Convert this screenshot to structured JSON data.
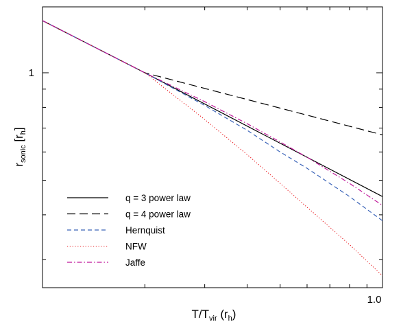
{
  "chart_data": {
    "type": "line",
    "x_scale": "log",
    "y_scale": "log",
    "xlabel": {
      "main": "T/T",
      "sub": "vir",
      "tail": " (r",
      "tail_sub": "h",
      "tail_end": ")"
    },
    "ylabel": {
      "main": "r",
      "sub": "sonic",
      "tail": " [r",
      "tail_sub": "h",
      "tail_end": "]"
    },
    "x_tick_labels": [
      {
        "value": 1.0,
        "label": "1.0"
      }
    ],
    "y_tick_labels": [
      {
        "value": 1,
        "label": "1"
      }
    ],
    "xlim": [
      0.1,
      1.0
    ],
    "ylim": [
      0.25,
      1.53
    ],
    "legend_position": "lower-left",
    "series": [
      {
        "name": "q = 3 power law",
        "color": "#000000",
        "dash": "solid",
        "x": [
          0.1,
          0.2,
          1.0
        ],
        "y": [
          1.4,
          1.0,
          0.45
        ]
      },
      {
        "name": "q = 4 power law",
        "color": "#000000",
        "dash": "longdash",
        "x": [
          0.1,
          0.2,
          1.0
        ],
        "y": [
          1.4,
          1.0,
          0.67
        ]
      },
      {
        "name": "Hernquist",
        "color": "#3a63b8",
        "dash": "dash",
        "x": [
          0.1,
          0.2,
          0.3,
          0.4,
          0.5,
          0.6,
          0.8,
          1.0
        ],
        "y": [
          1.4,
          1.0,
          0.81,
          0.69,
          0.6,
          0.54,
          0.45,
          0.385
        ]
      },
      {
        "name": "NFW",
        "color": "#e8161b",
        "dash": "dot",
        "x": [
          0.1,
          0.2,
          0.3,
          0.4,
          0.5,
          0.6,
          0.8,
          1.0
        ],
        "y": [
          1.4,
          1.0,
          0.74,
          0.59,
          0.49,
          0.42,
          0.33,
          0.27
        ]
      },
      {
        "name": "Jaffe",
        "color": "#c0189a",
        "dash": "dashdot",
        "x": [
          0.1,
          0.2,
          0.3,
          0.4,
          0.5,
          0.6,
          0.8,
          1.0
        ],
        "y": [
          1.4,
          1.0,
          0.83,
          0.72,
          0.64,
          0.58,
          0.49,
          0.425
        ]
      }
    ]
  }
}
